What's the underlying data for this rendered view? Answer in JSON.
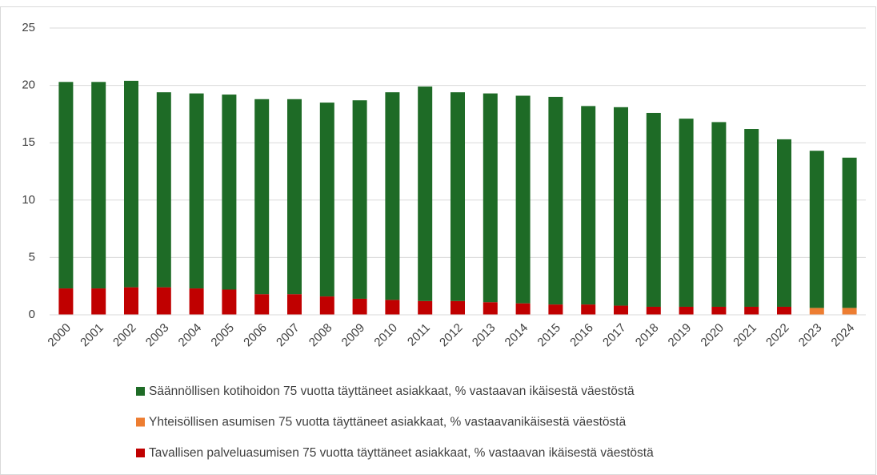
{
  "chart_data": {
    "type": "stacked_bar",
    "categories": [
      "2000",
      "2001",
      "2002",
      "2003",
      "2004",
      "2005",
      "2006",
      "2007",
      "2008",
      "2009",
      "2010",
      "2011",
      "2012",
      "2013",
      "2014",
      "2015",
      "2016",
      "2017",
      "2018",
      "2019",
      "2020",
      "2021",
      "2022",
      "2023",
      "2024"
    ],
    "series": [
      {
        "name": "Tavallisen palveluasumisen 75 vuotta täyttäneet asiakkaat, % vastaavan ikäisestä väestöstä",
        "color": "#c00000",
        "values": [
          2.3,
          2.3,
          2.4,
          2.4,
          2.3,
          2.2,
          1.8,
          1.8,
          1.6,
          1.4,
          1.3,
          1.2,
          1.2,
          1.1,
          1.0,
          0.9,
          0.9,
          0.8,
          0.7,
          0.7,
          0.7,
          0.7,
          0.7,
          null,
          null
        ]
      },
      {
        "name": "Yhteisöllisen asumisen 75 vuotta täyttäneet asiakkaat, % vastaavanikäisestä väestöstä",
        "color": "#ed7d31",
        "values": [
          null,
          null,
          null,
          null,
          null,
          null,
          null,
          null,
          null,
          null,
          null,
          null,
          null,
          null,
          null,
          null,
          null,
          null,
          null,
          null,
          null,
          null,
          null,
          0.6,
          0.6
        ]
      },
      {
        "name": "Säännöllisen kotihoidon 75 vuotta täyttäneet asiakkaat, % vastaavan ikäisestä väestöstä",
        "color": "#1e6b26",
        "values": [
          18.0,
          18.0,
          18.0,
          17.0,
          17.0,
          17.0,
          17.0,
          17.0,
          16.9,
          17.3,
          18.1,
          18.7,
          18.2,
          18.2,
          18.1,
          18.1,
          17.3,
          17.3,
          16.9,
          16.4,
          16.1,
          15.5,
          14.6,
          13.7,
          13.1
        ]
      }
    ],
    "legend_order": [
      2,
      1,
      0
    ],
    "ylim": [
      0,
      25
    ],
    "yticks": [
      0,
      5,
      10,
      15,
      20,
      25
    ],
    "grid": true
  }
}
